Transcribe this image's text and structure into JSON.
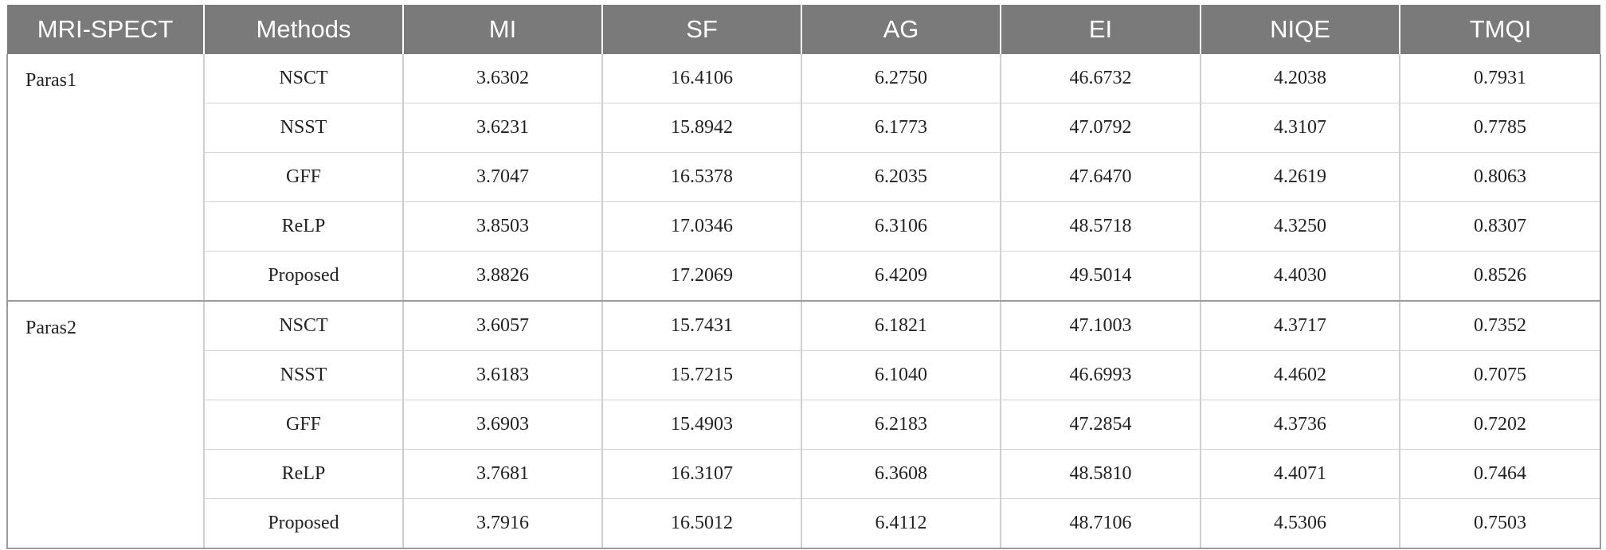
{
  "table": {
    "headers": [
      "MRI-SPECT",
      "Methods",
      "MI",
      "SF",
      "AG",
      "EI",
      "NIQE",
      "TMQI"
    ],
    "groups": [
      {
        "label": "Paras1",
        "rows": [
          {
            "method": "NSCT",
            "values": [
              "3.6302",
              "16.4106",
              "6.2750",
              "46.6732",
              "4.2038",
              "0.7931"
            ]
          },
          {
            "method": "NSST",
            "values": [
              "3.6231",
              "15.8942",
              "6.1773",
              "47.0792",
              "4.3107",
              "0.7785"
            ]
          },
          {
            "method": "GFF",
            "values": [
              "3.7047",
              "16.5378",
              "6.2035",
              "47.6470",
              "4.2619",
              "0.8063"
            ]
          },
          {
            "method": "ReLP",
            "values": [
              "3.8503",
              "17.0346",
              "6.3106",
              "48.5718",
              "4.3250",
              "0.8307"
            ]
          },
          {
            "method": "Proposed",
            "values": [
              "3.8826",
              "17.2069",
              "6.4209",
              "49.5014",
              "4.4030",
              "0.8526"
            ]
          }
        ]
      },
      {
        "label": "Paras2",
        "rows": [
          {
            "method": "NSCT",
            "values": [
              "3.6057",
              "15.7431",
              "6.1821",
              "47.1003",
              "4.3717",
              "0.7352"
            ]
          },
          {
            "method": "NSST",
            "values": [
              "3.6183",
              "15.7215",
              "6.1040",
              "46.6993",
              "4.4602",
              "0.7075"
            ]
          },
          {
            "method": "GFF",
            "values": [
              "3.6903",
              "15.4903",
              "6.2183",
              "47.2854",
              "4.3736",
              "0.7202"
            ]
          },
          {
            "method": "ReLP",
            "values": [
              "3.7681",
              "16.3107",
              "6.3608",
              "48.5810",
              "4.4071",
              "0.7464"
            ]
          },
          {
            "method": "Proposed",
            "values": [
              "3.7916",
              "16.5012",
              "6.4112",
              "48.7106",
              "4.5306",
              "0.7503"
            ]
          }
        ]
      }
    ]
  }
}
